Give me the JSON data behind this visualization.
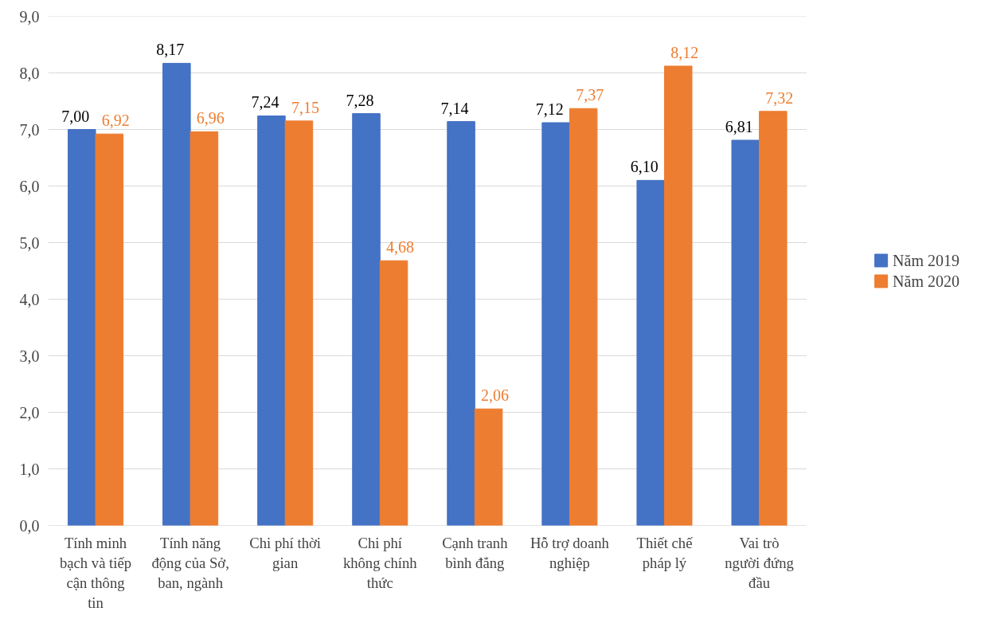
{
  "chart_data": {
    "type": "bar",
    "categories": [
      "Tính minh bạch và tiếp cận thông tin",
      "Tính năng động của Sở, ban, ngành",
      "Chi phí thời gian",
      "Chi phí không chính thức",
      "Cạnh tranh bình đẳng",
      "Hỗ trợ doanh nghiệp",
      "Thiết chế pháp lý",
      "Vai trò người đứng đầu"
    ],
    "series": [
      {
        "name": "Năm 2019",
        "color": "#4472c4",
        "values": [
          7.0,
          8.17,
          7.24,
          7.28,
          7.14,
          7.12,
          6.1,
          6.81
        ],
        "value_labels": [
          "7,00",
          "8,17",
          "7,24",
          "7,28",
          "7,14",
          "7,12",
          "6,10",
          "6,81"
        ]
      },
      {
        "name": "Năm 2020",
        "color": "#ed7d31",
        "values": [
          6.92,
          6.96,
          7.15,
          4.68,
          2.06,
          7.37,
          8.12,
          7.32
        ],
        "value_labels": [
          "6,92",
          "6,96",
          "7,15",
          "4,68",
          "2,06",
          "7,37",
          "8,12",
          "7,32"
        ]
      }
    ],
    "ylim": [
      0,
      9
    ],
    "yticks": [
      {
        "value": 0,
        "label": "0,0"
      },
      {
        "value": 1,
        "label": "1,0"
      },
      {
        "value": 2,
        "label": "2,0"
      },
      {
        "value": 3,
        "label": "3,0"
      },
      {
        "value": 4,
        "label": "4,0"
      },
      {
        "value": 5,
        "label": "5,0"
      },
      {
        "value": 6,
        "label": "6,0"
      },
      {
        "value": 7,
        "label": "7,0"
      },
      {
        "value": 8,
        "label": "8,0"
      },
      {
        "value": 9,
        "label": "9,0"
      }
    ],
    "grid": "y",
    "legend": "right"
  }
}
